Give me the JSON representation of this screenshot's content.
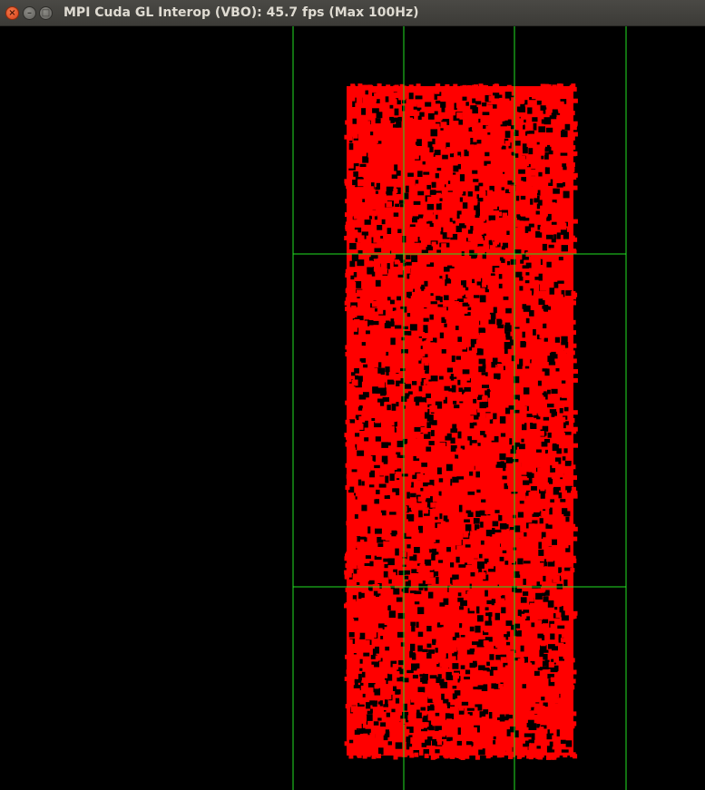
{
  "window": {
    "title": "MPI Cuda GL Interop (VBO): 45.7 fps (Max 100Hz)",
    "controls": {
      "close_glyph": "×",
      "minimize_glyph": "–",
      "maximize_glyph": "□"
    }
  },
  "scene": {
    "background_color": "#000000",
    "particle_color": "#ff0000",
    "grid_color": "#22e022"
  }
}
